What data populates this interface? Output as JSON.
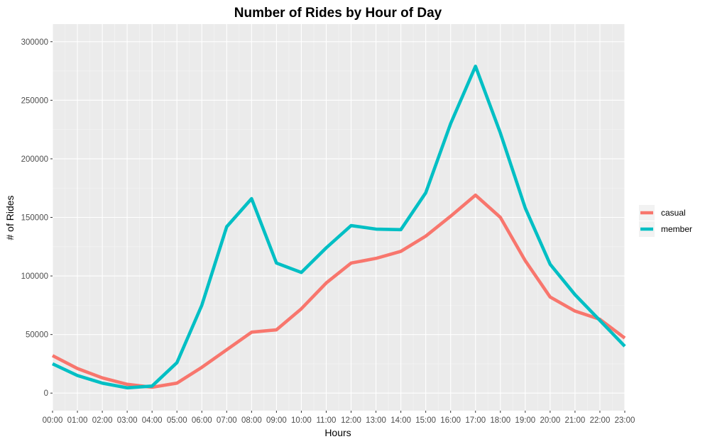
{
  "chart_data": {
    "type": "line",
    "title": "Number of Rides by Hour of Day",
    "xlabel": "Hours",
    "ylabel": "# of Rides",
    "categories": [
      "00:00",
      "01:00",
      "02:00",
      "03:00",
      "04:00",
      "05:00",
      "06:00",
      "07:00",
      "08:00",
      "09:00",
      "10:00",
      "11:00",
      "12:00",
      "13:00",
      "14:00",
      "15:00",
      "16:00",
      "17:00",
      "18:00",
      "19:00",
      "20:00",
      "21:00",
      "22:00",
      "23:00"
    ],
    "ylim": [
      -15000,
      315000
    ],
    "yticks": [
      0,
      50000,
      100000,
      150000,
      200000,
      250000,
      300000
    ],
    "ytick_labels": [
      "0",
      "50000",
      "100000",
      "150000",
      "200000",
      "250000",
      "300000"
    ],
    "grid": true,
    "legend_position": "right",
    "series": [
      {
        "name": "casual",
        "color": "#F8766D",
        "values": [
          32000,
          21000,
          13000,
          7500,
          5000,
          8500,
          22000,
          37000,
          52000,
          54000,
          72000,
          94000,
          111000,
          115000,
          121000,
          134000,
          151000,
          169000,
          150000,
          113000,
          82000,
          70000,
          63000,
          47000
        ]
      },
      {
        "name": "member",
        "color": "#00BFC4",
        "values": [
          25000,
          15000,
          8500,
          4500,
          6000,
          26000,
          75000,
          142000,
          166000,
          111000,
          103000,
          124000,
          143000,
          140000,
          139500,
          171000,
          230000,
          279000,
          222000,
          158000,
          110000,
          84000,
          62000,
          40000
        ]
      }
    ]
  }
}
